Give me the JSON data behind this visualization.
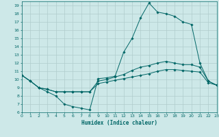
{
  "xlabel": "Humidex (Indice chaleur)",
  "background_color": "#cde8e8",
  "grid_color": "#b0cccc",
  "line_color": "#006666",
  "xlim": [
    0,
    23
  ],
  "ylim": [
    6,
    19.5
  ],
  "xticks": [
    0,
    1,
    2,
    3,
    4,
    5,
    6,
    7,
    8,
    9,
    10,
    11,
    12,
    13,
    14,
    15,
    16,
    17,
    18,
    19,
    20,
    21,
    22,
    23
  ],
  "yticks": [
    6,
    7,
    8,
    9,
    10,
    11,
    12,
    13,
    14,
    15,
    16,
    17,
    18,
    19
  ],
  "line1_x": [
    0,
    1,
    2,
    3,
    4,
    5,
    6,
    7,
    8,
    9,
    10,
    11,
    12,
    13,
    14,
    15,
    16,
    17,
    18,
    19,
    20,
    21,
    22,
    23
  ],
  "line1_y": [
    10.5,
    9.8,
    9.0,
    8.5,
    8.0,
    7.0,
    6.7,
    6.5,
    6.3,
    10.1,
    10.2,
    10.4,
    13.3,
    15.0,
    17.5,
    19.3,
    18.2,
    18.0,
    17.7,
    17.0,
    16.7,
    12.0,
    9.8,
    9.3
  ],
  "line2_x": [
    0,
    1,
    2,
    3,
    4,
    5,
    6,
    7,
    8,
    9,
    10,
    11,
    12,
    13,
    14,
    15,
    16,
    17,
    18,
    19,
    20,
    21,
    22,
    23
  ],
  "line2_y": [
    10.5,
    9.8,
    9.0,
    8.8,
    8.5,
    8.5,
    8.5,
    8.5,
    8.5,
    9.8,
    10.0,
    10.3,
    10.6,
    11.1,
    11.5,
    11.7,
    12.0,
    12.2,
    12.0,
    11.8,
    11.8,
    11.5,
    9.8,
    9.3
  ],
  "line3_x": [
    0,
    1,
    2,
    3,
    4,
    5,
    6,
    7,
    8,
    9,
    10,
    11,
    12,
    13,
    14,
    15,
    16,
    17,
    18,
    19,
    20,
    21,
    22,
    23
  ],
  "line3_y": [
    10.5,
    9.8,
    9.0,
    8.8,
    8.5,
    8.5,
    8.5,
    8.5,
    8.5,
    9.5,
    9.7,
    9.9,
    10.1,
    10.3,
    10.5,
    10.7,
    11.0,
    11.2,
    11.2,
    11.1,
    11.0,
    10.9,
    9.6,
    9.3
  ]
}
